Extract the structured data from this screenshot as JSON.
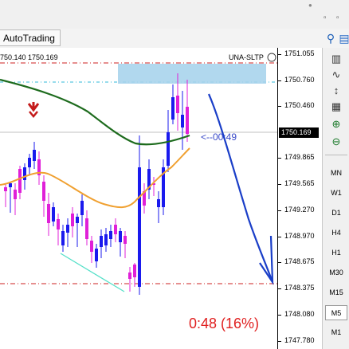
{
  "window": {
    "min_icon": "minimize-icon",
    "max_icon": "maximize-icon",
    "close_icon": "close-icon"
  },
  "toolbar": {
    "autotrading_label": "AutoTrading",
    "search_icon": "search-icon"
  },
  "chart": {
    "bid_ask_text": "750.140 1750.169",
    "indicator_label": "UNA-SLTP",
    "countdown_arrow_text": "<--00:49",
    "timer_text": "0:48 (16%)",
    "current_price": "1750.169",
    "price_labels": [
      "1751.055",
      "1750.760",
      "1750.460",
      "1749.865",
      "1749.565",
      "1749.270",
      "1748.970",
      "1748.675",
      "1748.375",
      "1748.080",
      "1747.780"
    ],
    "colors": {
      "bull": "#1a1aee",
      "bear": "#e020d8",
      "ma_slow": "#1d6b1d",
      "ma_fast": "#f0a030",
      "level": "#cc2222",
      "zone": "#a8d4ec",
      "arrow": "#1a3ec8"
    }
  },
  "chart_data": {
    "type": "candlestick",
    "y_axis_ticks": [
      1751.055,
      1750.76,
      1750.46,
      1749.865,
      1749.565,
      1749.27,
      1748.97,
      1748.675,
      1748.375,
      1748.08,
      1747.78
    ],
    "current_price": 1750.169
  },
  "right_panel": {
    "timeframes": [
      "MN",
      "W1",
      "D1",
      "H4",
      "H1",
      "M30",
      "M15",
      "M5",
      "M1"
    ],
    "active_timeframe": "M5"
  }
}
